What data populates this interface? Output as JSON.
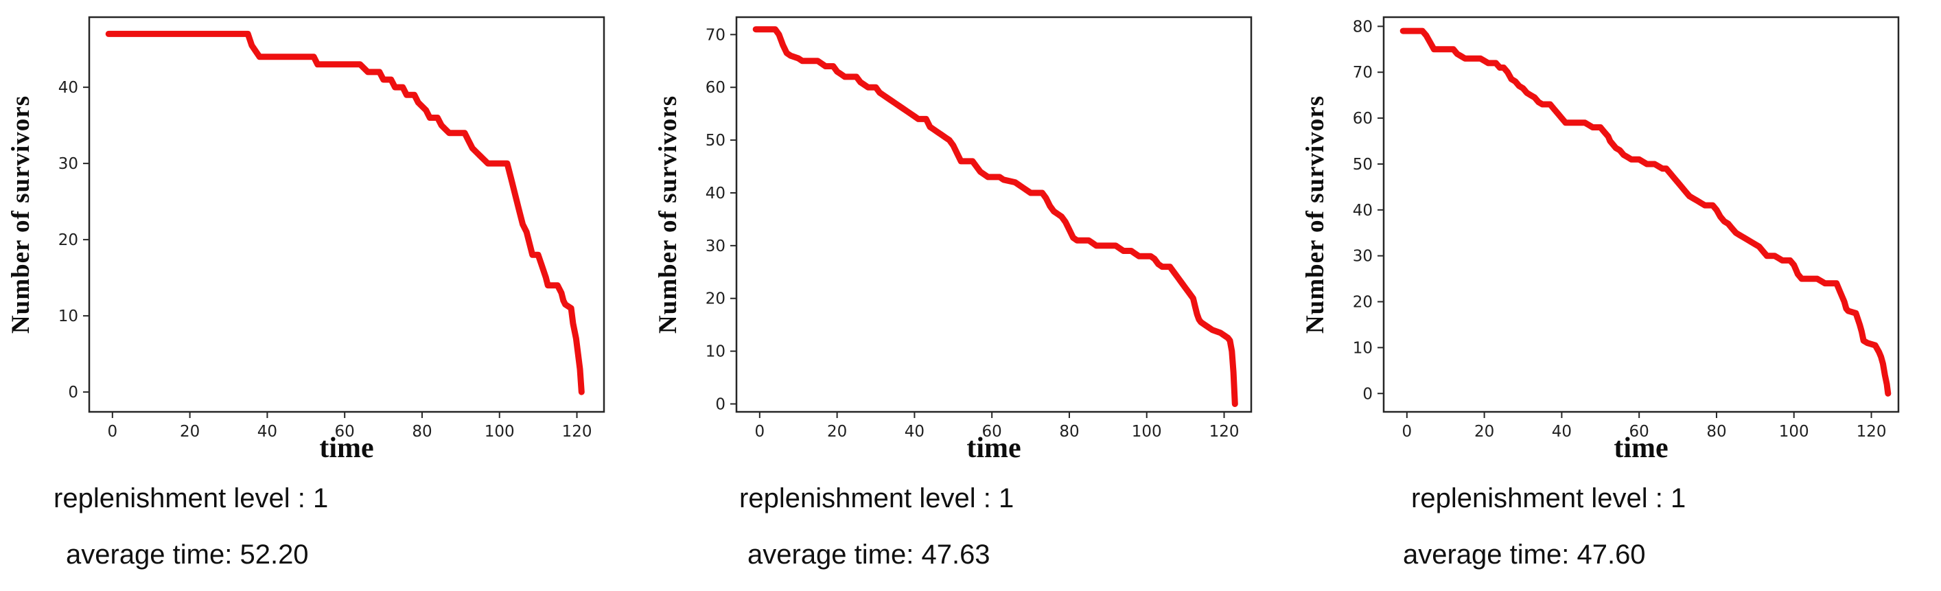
{
  "chart_data": [
    {
      "type": "line",
      "title": "",
      "xlabel": "time",
      "ylabel": "Number of survivors",
      "xlim": [
        -6,
        127
      ],
      "ylim": [
        -2.6,
        49.2
      ],
      "xticks": [
        0,
        20,
        40,
        60,
        80,
        100,
        120
      ],
      "yticks": [
        0,
        10,
        20,
        30,
        40
      ],
      "grid": false,
      "legend": "none",
      "line_color": "#ee1010",
      "line_width": 9,
      "points": [
        [
          -1,
          47
        ],
        [
          35,
          47
        ],
        [
          36,
          45.5
        ],
        [
          38,
          44
        ],
        [
          52,
          44
        ],
        [
          53,
          43
        ],
        [
          64,
          43
        ],
        [
          66,
          42
        ],
        [
          69,
          42
        ],
        [
          70,
          41
        ],
        [
          72,
          41
        ],
        [
          73,
          40
        ],
        [
          75,
          40
        ],
        [
          76,
          39
        ],
        [
          78,
          39
        ],
        [
          79,
          38
        ],
        [
          80,
          37.5
        ],
        [
          81,
          37
        ],
        [
          82,
          36
        ],
        [
          84,
          36
        ],
        [
          85,
          35
        ],
        [
          86,
          34.5
        ],
        [
          87,
          34
        ],
        [
          91,
          34
        ],
        [
          92,
          33
        ],
        [
          93,
          32
        ],
        [
          94,
          31.5
        ],
        [
          95,
          31
        ],
        [
          96,
          30.5
        ],
        [
          97,
          30
        ],
        [
          102,
          30
        ],
        [
          103,
          28
        ],
        [
          104,
          26
        ],
        [
          105,
          24
        ],
        [
          106,
          22
        ],
        [
          107,
          21
        ],
        [
          108,
          19
        ],
        [
          108.5,
          18
        ],
        [
          110,
          18
        ],
        [
          111,
          16.5
        ],
        [
          112,
          15
        ],
        [
          112.5,
          14
        ],
        [
          115,
          14
        ],
        [
          116,
          13
        ],
        [
          116.5,
          12
        ],
        [
          117,
          11.5
        ],
        [
          118.5,
          11
        ],
        [
          119,
          9
        ],
        [
          119.8,
          7
        ],
        [
          120.3,
          5
        ],
        [
          120.8,
          3
        ],
        [
          121.2,
          0
        ]
      ],
      "captions": {
        "replenishment": "replenishment level : 1",
        "average": "average time: 52.20"
      }
    },
    {
      "type": "line",
      "title": "",
      "xlabel": "time",
      "ylabel": "Number of survivors",
      "xlim": [
        -6,
        127
      ],
      "ylim": [
        -1.5,
        73.3
      ],
      "xticks": [
        0,
        20,
        40,
        60,
        80,
        100,
        120
      ],
      "yticks": [
        0,
        10,
        20,
        30,
        40,
        50,
        60,
        70
      ],
      "grid": false,
      "legend": "none",
      "line_color": "#ee1010",
      "line_width": 9,
      "points": [
        [
          -1,
          71
        ],
        [
          4,
          71
        ],
        [
          5,
          70
        ],
        [
          6,
          68
        ],
        [
          7,
          66.5
        ],
        [
          8,
          66
        ],
        [
          10,
          65.5
        ],
        [
          11,
          65
        ],
        [
          15,
          65
        ],
        [
          16,
          64.5
        ],
        [
          17,
          64
        ],
        [
          19,
          64
        ],
        [
          20,
          63
        ],
        [
          21,
          62.5
        ],
        [
          22,
          62
        ],
        [
          25,
          62
        ],
        [
          26,
          61
        ],
        [
          27,
          60.5
        ],
        [
          28,
          60
        ],
        [
          30,
          60
        ],
        [
          31,
          59
        ],
        [
          32,
          58.5
        ],
        [
          33,
          58
        ],
        [
          34,
          57.5
        ],
        [
          35,
          57
        ],
        [
          36,
          56.5
        ],
        [
          37,
          56
        ],
        [
          38,
          55.5
        ],
        [
          39,
          55
        ],
        [
          40,
          54.5
        ],
        [
          41,
          54
        ],
        [
          43,
          54
        ],
        [
          44,
          52.5
        ],
        [
          45,
          52
        ],
        [
          46,
          51.5
        ],
        [
          47,
          51
        ],
        [
          48,
          50.5
        ],
        [
          49,
          50
        ],
        [
          50,
          49
        ],
        [
          51,
          47.5
        ],
        [
          52,
          46
        ],
        [
          55,
          46
        ],
        [
          56,
          45
        ],
        [
          57,
          44
        ],
        [
          58,
          43.5
        ],
        [
          59,
          43
        ],
        [
          62,
          43
        ],
        [
          63,
          42.5
        ],
        [
          66,
          42
        ],
        [
          67,
          41.5
        ],
        [
          68,
          41
        ],
        [
          69,
          40.5
        ],
        [
          70,
          40
        ],
        [
          73,
          40
        ],
        [
          74,
          39
        ],
        [
          75,
          37.5
        ],
        [
          76,
          36.5
        ],
        [
          77,
          36
        ],
        [
          78,
          35.5
        ],
        [
          79,
          34.5
        ],
        [
          80,
          33
        ],
        [
          81,
          31.5
        ],
        [
          82,
          31
        ],
        [
          85,
          31
        ],
        [
          86,
          30.5
        ],
        [
          87,
          30
        ],
        [
          92,
          30
        ],
        [
          93,
          29.5
        ],
        [
          94,
          29
        ],
        [
          96,
          29
        ],
        [
          97,
          28.5
        ],
        [
          98,
          28
        ],
        [
          101,
          28
        ],
        [
          102,
          27.5
        ],
        [
          103,
          26.5
        ],
        [
          104,
          26
        ],
        [
          106,
          26
        ],
        [
          107,
          25
        ],
        [
          108,
          24
        ],
        [
          109,
          23
        ],
        [
          110,
          22
        ],
        [
          111,
          21
        ],
        [
          112,
          20
        ],
        [
          112.5,
          18.5
        ],
        [
          113,
          17
        ],
        [
          113.5,
          16
        ],
        [
          114,
          15.5
        ],
        [
          115,
          15
        ],
        [
          116,
          14.5
        ],
        [
          117,
          14
        ],
        [
          119,
          13.5
        ],
        [
          120,
          13
        ],
        [
          121,
          12.5
        ],
        [
          121.5,
          12
        ],
        [
          122,
          10
        ],
        [
          122.4,
          6
        ],
        [
          122.8,
          0
        ]
      ],
      "captions": {
        "replenishment": "replenishment level : 1",
        "average": "average time: 47.63"
      }
    },
    {
      "type": "line",
      "title": "",
      "xlabel": "time",
      "ylabel": "Number of survivors",
      "xlim": [
        -6,
        127
      ],
      "ylim": [
        -4,
        82
      ],
      "xticks": [
        0,
        20,
        40,
        60,
        80,
        100,
        120
      ],
      "yticks": [
        0,
        10,
        20,
        30,
        40,
        50,
        60,
        70,
        80
      ],
      "grid": false,
      "legend": "none",
      "line_color": "#ee1010",
      "line_width": 9,
      "points": [
        [
          -1,
          79
        ],
        [
          4,
          79
        ],
        [
          5,
          78
        ],
        [
          6,
          76.5
        ],
        [
          7,
          75
        ],
        [
          12,
          75
        ],
        [
          13,
          74
        ],
        [
          14,
          73.5
        ],
        [
          15,
          73
        ],
        [
          19,
          73
        ],
        [
          20,
          72.5
        ],
        [
          21,
          72
        ],
        [
          23,
          72
        ],
        [
          24,
          71
        ],
        [
          25,
          71
        ],
        [
          26,
          70
        ],
        [
          27,
          68.5
        ],
        [
          28,
          68
        ],
        [
          29,
          67
        ],
        [
          30,
          66.5
        ],
        [
          31,
          65.5
        ],
        [
          32,
          65
        ],
        [
          33,
          64.5
        ],
        [
          34,
          63.5
        ],
        [
          35,
          63
        ],
        [
          37,
          63
        ],
        [
          38,
          62
        ],
        [
          39,
          61
        ],
        [
          40,
          60
        ],
        [
          41,
          59
        ],
        [
          46,
          59
        ],
        [
          47,
          58.5
        ],
        [
          48,
          58
        ],
        [
          50,
          58
        ],
        [
          51,
          57
        ],
        [
          52,
          56
        ],
        [
          52.5,
          55
        ],
        [
          53,
          54.5
        ],
        [
          54,
          53.5
        ],
        [
          55,
          53
        ],
        [
          56,
          52
        ],
        [
          57,
          51.5
        ],
        [
          58,
          51
        ],
        [
          60,
          51
        ],
        [
          61,
          50.5
        ],
        [
          62,
          50
        ],
        [
          64,
          50
        ],
        [
          65,
          49.5
        ],
        [
          66,
          49
        ],
        [
          67,
          49
        ],
        [
          68,
          48
        ],
        [
          69,
          47
        ],
        [
          70,
          46
        ],
        [
          71,
          45
        ],
        [
          72,
          44
        ],
        [
          73,
          43
        ],
        [
          74,
          42.5
        ],
        [
          75,
          42
        ],
        [
          76,
          41.5
        ],
        [
          77,
          41
        ],
        [
          79,
          41
        ],
        [
          80,
          40
        ],
        [
          81,
          38.5
        ],
        [
          82,
          37.5
        ],
        [
          83,
          37
        ],
        [
          84,
          36
        ],
        [
          85,
          35
        ],
        [
          86,
          34.5
        ],
        [
          87,
          34
        ],
        [
          88,
          33.5
        ],
        [
          89,
          33
        ],
        [
          90,
          32.5
        ],
        [
          91,
          32
        ],
        [
          92,
          31
        ],
        [
          93,
          30
        ],
        [
          95,
          30
        ],
        [
          96,
          29.5
        ],
        [
          97,
          29
        ],
        [
          99,
          29
        ],
        [
          100,
          28
        ],
        [
          100.5,
          27
        ],
        [
          101,
          26
        ],
        [
          102,
          25
        ],
        [
          106,
          25
        ],
        [
          107,
          24.5
        ],
        [
          108,
          24
        ],
        [
          111,
          24
        ],
        [
          112,
          22
        ],
        [
          113,
          20
        ],
        [
          113.5,
          18.5
        ],
        [
          114,
          18
        ],
        [
          116,
          17.5
        ],
        [
          117,
          15
        ],
        [
          117.5,
          13.5
        ],
        [
          118,
          11.5
        ],
        [
          119,
          11
        ],
        [
          121,
          10.5
        ],
        [
          122,
          9
        ],
        [
          122.5,
          8
        ],
        [
          123,
          6.5
        ],
        [
          123.5,
          4
        ],
        [
          124,
          2
        ],
        [
          124.3,
          0
        ]
      ],
      "captions": {
        "replenishment": "replenishment level : 1",
        "average": "average time: 47.60"
      }
    }
  ]
}
